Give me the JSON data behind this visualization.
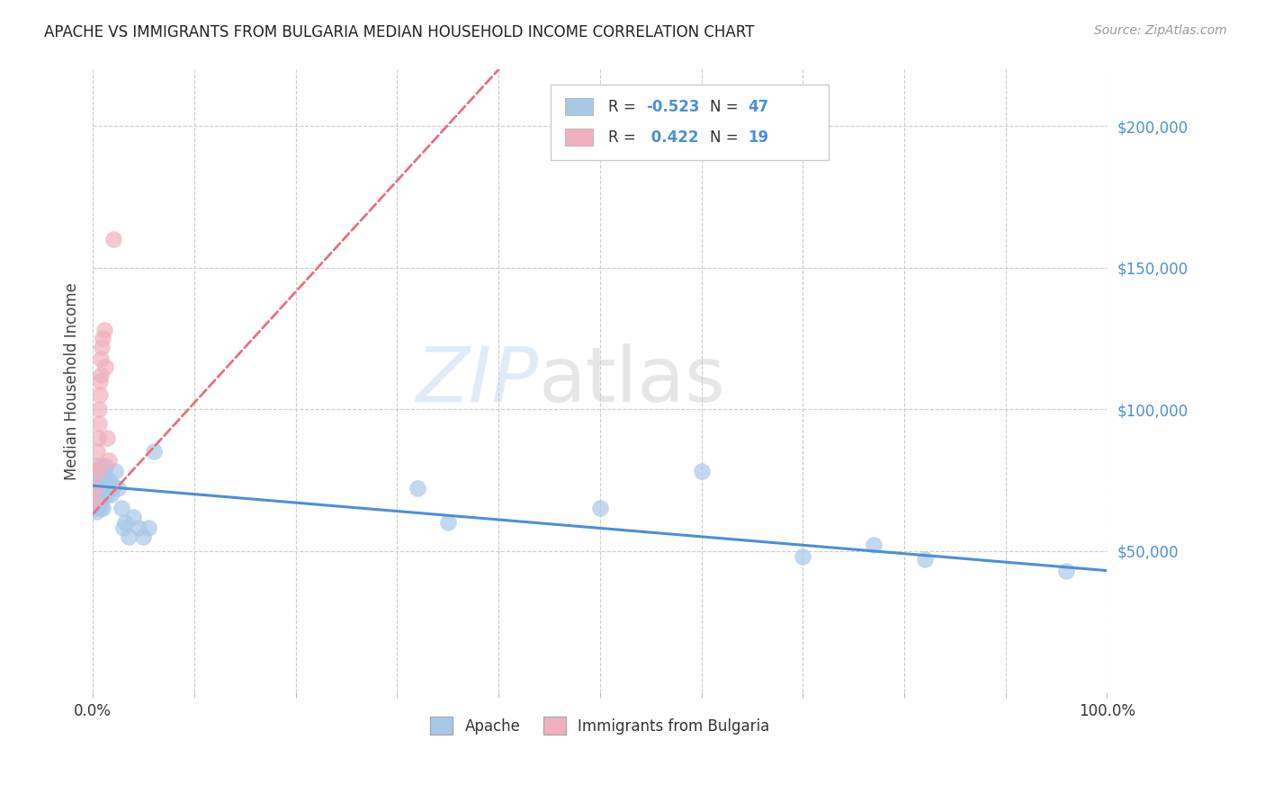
{
  "title": "APACHE VS IMMIGRANTS FROM BULGARIA MEDIAN HOUSEHOLD INCOME CORRELATION CHART",
  "source": "Source: ZipAtlas.com",
  "ylabel": "Median Household Income",
  "watermark_zip": "ZIP",
  "watermark_atlas": "atlas",
  "xlim": [
    0.0,
    1.0
  ],
  "ylim": [
    0,
    220000
  ],
  "ytick_values": [
    50000,
    100000,
    150000,
    200000
  ],
  "ytick_labels": [
    "$50,000",
    "$100,000",
    "$150,000",
    "$200,000"
  ],
  "apache_R": -0.523,
  "apache_N": 47,
  "bulgaria_R": 0.422,
  "bulgaria_N": 19,
  "apache_color": "#a8c8e8",
  "bulgaria_color": "#f0b0be",
  "apache_line_color": "#4a90d9",
  "bulgaria_line_color": "#e87080",
  "legend_label_apache": "Apache",
  "legend_label_bulgaria": "Immigrants from Bulgaria",
  "apache_points_x": [
    0.001,
    0.002,
    0.002,
    0.003,
    0.003,
    0.004,
    0.004,
    0.005,
    0.005,
    0.005,
    0.006,
    0.006,
    0.007,
    0.007,
    0.008,
    0.008,
    0.009,
    0.009,
    0.01,
    0.01,
    0.011,
    0.012,
    0.013,
    0.014,
    0.015,
    0.016,
    0.018,
    0.02,
    0.022,
    0.025,
    0.028,
    0.03,
    0.032,
    0.035,
    0.04,
    0.045,
    0.05,
    0.055,
    0.06,
    0.32,
    0.35,
    0.5,
    0.6,
    0.7,
    0.77,
    0.82,
    0.96
  ],
  "apache_points_y": [
    72000,
    68000,
    75000,
    64000,
    70000,
    78000,
    65000,
    72000,
    75000,
    68000,
    70000,
    73000,
    68000,
    72000,
    80000,
    65000,
    70000,
    68000,
    72000,
    65000,
    78000,
    80000,
    75000,
    70000,
    72000,
    75000,
    70000,
    73000,
    78000,
    72000,
    65000,
    58000,
    60000,
    55000,
    62000,
    58000,
    55000,
    58000,
    85000,
    72000,
    60000,
    65000,
    78000,
    48000,
    52000,
    47000,
    43000
  ],
  "bulgaria_points_x": [
    0.001,
    0.002,
    0.003,
    0.004,
    0.005,
    0.005,
    0.006,
    0.006,
    0.007,
    0.007,
    0.008,
    0.008,
    0.009,
    0.01,
    0.011,
    0.012,
    0.014,
    0.016,
    0.02
  ],
  "bulgaria_points_y": [
    68000,
    72000,
    80000,
    85000,
    78000,
    90000,
    95000,
    100000,
    105000,
    110000,
    112000,
    118000,
    122000,
    125000,
    128000,
    115000,
    90000,
    82000,
    160000
  ],
  "apache_trendline_x": [
    0.0,
    1.0
  ],
  "apache_trendline_y": [
    73000,
    43000
  ],
  "bulgaria_trendline_x": [
    0.0,
    0.4
  ],
  "bulgaria_trendline_y": [
    63000,
    220000
  ],
  "background_color": "#ffffff",
  "grid_color": "#cccccc"
}
